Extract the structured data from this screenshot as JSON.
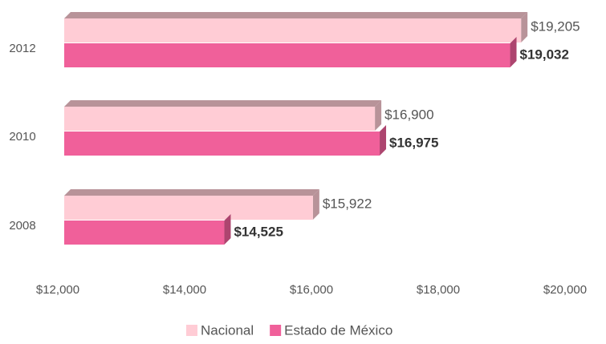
{
  "chart_data": {
    "type": "bar",
    "orientation": "horizontal",
    "categories": [
      "2012",
      "2010",
      "2008"
    ],
    "series": [
      {
        "name": "Nacional",
        "color": "#FFCCD5",
        "values": [
          19205,
          16900,
          15922
        ],
        "value_labels": [
          "$19,205",
          "$16,900",
          "$15,922"
        ]
      },
      {
        "name": "Estado de México",
        "color": "#F0609A",
        "values": [
          19032,
          16975,
          14525
        ],
        "value_labels": [
          "$19,032",
          "$16,975",
          "$14,525"
        ]
      }
    ],
    "xlim": [
      12000,
      20000
    ],
    "xticks": [
      {
        "value": 12000,
        "label": "$12,000"
      },
      {
        "value": 14000,
        "label": "$14,000"
      },
      {
        "value": 16000,
        "label": "$16,000"
      },
      {
        "value": 18000,
        "label": "$18,000"
      },
      {
        "value": 20000,
        "label": "$20,000"
      }
    ],
    "grid": false,
    "legend": "bottom"
  }
}
